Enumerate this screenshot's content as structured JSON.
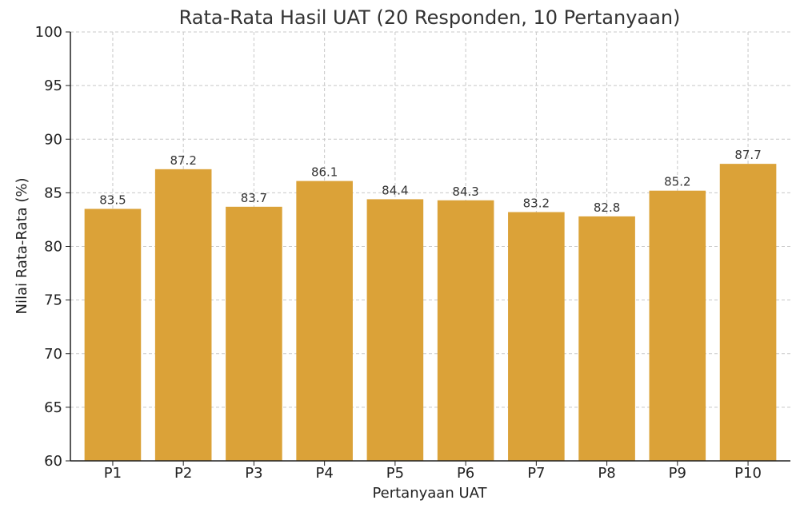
{
  "chart_data": {
    "type": "bar",
    "title": "Rata-Rata Hasil UAT (20 Responden, 10 Pertanyaan)",
    "xlabel": "Pertanyaan UAT",
    "ylabel": "Nilai Rata-Rata (%)",
    "categories": [
      "P1",
      "P2",
      "P3",
      "P4",
      "P5",
      "P6",
      "P7",
      "P8",
      "P9",
      "P10"
    ],
    "values": [
      83.5,
      87.2,
      83.7,
      86.1,
      84.4,
      84.3,
      83.2,
      82.8,
      85.2,
      87.7
    ],
    "data_labels": [
      "83.5",
      "87.2",
      "83.7",
      "86.1",
      "84.4",
      "84.3",
      "83.2",
      "82.8",
      "85.2",
      "87.7"
    ],
    "ylim": [
      60,
      100
    ],
    "yticks": [
      "60",
      "65",
      "70",
      "75",
      "80",
      "85",
      "90",
      "95",
      "100"
    ],
    "grid": true,
    "bar_color": "#DBA238"
  }
}
